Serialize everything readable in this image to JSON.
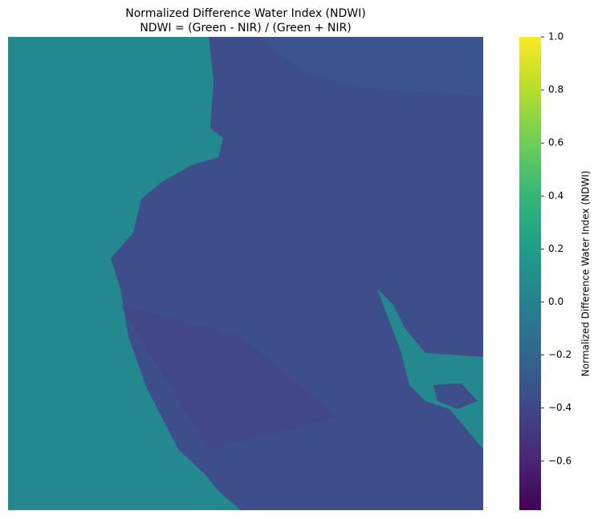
{
  "chart_data": {
    "type": "raster",
    "title": "Normalized Difference Water Index (NDWI)",
    "subtitle": "NDWI = (Green - NIR) / (Green + NIR)",
    "colorbar_label": "Normalized Difference Water Index (NDWI)",
    "colormap": "viridis",
    "clim": [
      -0.785,
      1.0
    ],
    "cticks": [
      {
        "value": -0.6,
        "label": "−0.6"
      },
      {
        "value": -0.4,
        "label": "−0.4"
      },
      {
        "value": -0.2,
        "label": "−0.2"
      },
      {
        "value": 0,
        "label": "0.0"
      },
      0.2,
      0.4,
      0.6,
      0.8,
      {
        "value": 1,
        "label": "1.0"
      }
    ]
  }
}
